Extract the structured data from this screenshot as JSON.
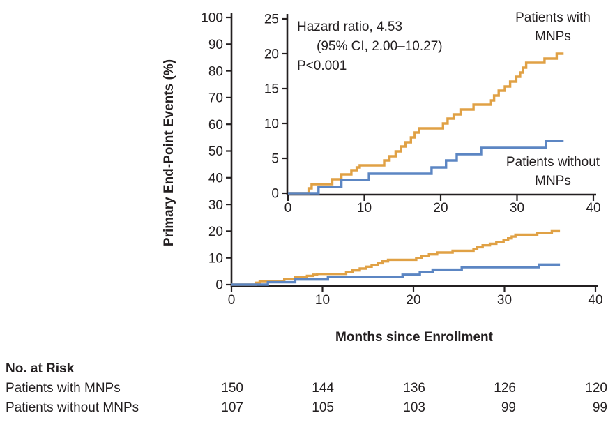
{
  "figure": {
    "ylabel": "Primary End-Point Events (%)",
    "xlabel": "Months since Enrollment",
    "annotation": {
      "line1": "Hazard ratio, 4.53",
      "line2": "(95% CI, 2.00–10.27)",
      "line3": "P<0.001"
    },
    "series_labels": {
      "with_mnps": [
        "Patients with",
        "MNPs"
      ],
      "without_mnps": [
        "Patients without",
        "MNPs"
      ]
    },
    "colors": {
      "with_mnps": "#E0A145",
      "without_mnps": "#5C86C3",
      "axis": "#231F20",
      "background": "#FFFFFF"
    }
  },
  "chart_data": {
    "type": "line",
    "subtype": "kaplan_meier_step",
    "title": "",
    "xlabel": "Months since Enrollment",
    "ylabel": "Primary End-Point Events (%)",
    "annotation": [
      "Hazard ratio, 4.53",
      "(95% CI, 2.00–10.27)",
      "P<0.001"
    ],
    "legend_position": "inline-labels",
    "x_end": 36.1,
    "panels": [
      {
        "name": "main",
        "xlim": [
          0,
          40
        ],
        "ylim": [
          0,
          100
        ],
        "xticks": [
          0,
          10,
          20,
          30,
          40
        ],
        "yticks": [
          0,
          10,
          20,
          30,
          40,
          50,
          60,
          70,
          80,
          90,
          100
        ],
        "grid": false
      },
      {
        "name": "inset",
        "xlim": [
          0,
          40
        ],
        "ylim": [
          0,
          25
        ],
        "xticks": [
          0,
          10,
          20,
          30,
          40
        ],
        "yticks": [
          0,
          5,
          10,
          15,
          20,
          25
        ],
        "grid": false
      }
    ],
    "series": [
      {
        "name": "Patients with MNPs",
        "color": "#E0A145",
        "events": [
          [
            2.7,
            0.7
          ],
          [
            3.1,
            1.3
          ],
          [
            5.8,
            2.0
          ],
          [
            7.0,
            2.7
          ],
          [
            8.3,
            3.3
          ],
          [
            9.0,
            3.7
          ],
          [
            9.4,
            4.0
          ],
          [
            12.6,
            4.7
          ],
          [
            13.3,
            5.3
          ],
          [
            14.1,
            6.0
          ],
          [
            14.8,
            6.7
          ],
          [
            15.4,
            7.3
          ],
          [
            16.1,
            8.0
          ],
          [
            16.6,
            8.7
          ],
          [
            17.2,
            9.3
          ],
          [
            20.3,
            10.0
          ],
          [
            20.9,
            10.7
          ],
          [
            21.7,
            11.3
          ],
          [
            22.6,
            12.0
          ],
          [
            24.3,
            12.7
          ],
          [
            26.6,
            13.3
          ],
          [
            27.0,
            14.0
          ],
          [
            27.6,
            14.7
          ],
          [
            28.4,
            15.3
          ],
          [
            29.1,
            16.0
          ],
          [
            29.9,
            16.7
          ],
          [
            30.4,
            17.3
          ],
          [
            30.8,
            18.0
          ],
          [
            31.2,
            18.7
          ],
          [
            33.6,
            19.3
          ],
          [
            35.2,
            20.0
          ]
        ]
      },
      {
        "name": "Patients without MNPs",
        "color": "#5C86C3",
        "events": [
          [
            4.0,
            0.9
          ],
          [
            7.0,
            1.9
          ],
          [
            10.6,
            2.8
          ],
          [
            18.8,
            3.7
          ],
          [
            20.7,
            4.7
          ],
          [
            22.1,
            5.6
          ],
          [
            25.3,
            6.5
          ],
          [
            33.8,
            7.5
          ]
        ]
      }
    ]
  },
  "risk_table": {
    "title": "No. at Risk",
    "columns_months": [
      0,
      10,
      20,
      30,
      40
    ],
    "rows": [
      {
        "label": "Patients with MNPs",
        "values": [
          "150",
          "144",
          "136",
          "126",
          "120"
        ]
      },
      {
        "label": "Patients without MNPs",
        "values": [
          "107",
          "105",
          "103",
          "99",
          "99"
        ]
      }
    ]
  }
}
